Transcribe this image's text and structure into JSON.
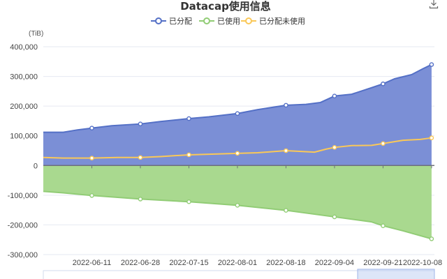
{
  "colors": {
    "allocated": "#5470c6",
    "allocated_fill": "#7b8fd6",
    "used": "#91cc75",
    "used_fill": "#a9d98f",
    "unused": "#fac858",
    "grid": "#e6e9f2",
    "axis": "#6e7079"
  },
  "icons": {
    "download": "download-icon"
  },
  "chart_data": {
    "type": "area",
    "title": "Datacap使用信息",
    "ylabel": "(TiB)",
    "ylim": [
      -300000,
      400000
    ],
    "yticks": [
      400000,
      300000,
      200000,
      100000,
      0,
      -100000,
      -200000,
      -300000
    ],
    "ytick_labels": [
      "400,000",
      "300,000",
      "200,000",
      "100,000",
      "0",
      "-100,000",
      "-200,000",
      "-300,000"
    ],
    "xtick_labels": [
      "2022-06-11",
      "2022-06-28",
      "2022-07-15",
      "2022-08-01",
      "2022-08-18",
      "2022-09-04",
      "2022-09-21",
      "2022-10-08"
    ],
    "legend_position": "top-center",
    "grid": true,
    "series": [
      {
        "name": "已分配",
        "color": "#5470c6",
        "x": [
          "2022-05-25",
          "2022-06-01",
          "2022-06-06",
          "2022-06-11",
          "2022-06-18",
          "2022-06-28",
          "2022-07-05",
          "2022-07-15",
          "2022-07-22",
          "2022-08-01",
          "2022-08-08",
          "2022-08-18",
          "2022-08-25",
          "2022-08-30",
          "2022-09-04",
          "2022-09-10",
          "2022-09-17",
          "2022-09-21",
          "2022-09-25",
          "2022-10-01",
          "2022-10-05",
          "2022-10-08"
        ],
        "values": [
          112000,
          112000,
          120000,
          126000,
          134000,
          140000,
          148000,
          158000,
          164000,
          175000,
          188000,
          203000,
          206000,
          212000,
          234000,
          240000,
          262000,
          275000,
          292000,
          306000,
          326000,
          340000
        ]
      },
      {
        "name": "已使用",
        "color": "#91cc75",
        "x": [
          "2022-05-25",
          "2022-06-01",
          "2022-06-11",
          "2022-06-28",
          "2022-07-15",
          "2022-08-01",
          "2022-08-18",
          "2022-09-04",
          "2022-09-17",
          "2022-09-21",
          "2022-09-28",
          "2022-10-08"
        ],
        "values": [
          -87000,
          -92000,
          -101000,
          -113000,
          -122000,
          -134000,
          -151000,
          -173000,
          -190000,
          -203000,
          -220000,
          -247000
        ]
      },
      {
        "name": "已分配未使用",
        "color": "#fac858",
        "x": [
          "2022-05-25",
          "2022-06-01",
          "2022-06-11",
          "2022-06-20",
          "2022-06-28",
          "2022-07-05",
          "2022-07-15",
          "2022-07-22",
          "2022-08-01",
          "2022-08-08",
          "2022-08-18",
          "2022-08-28",
          "2022-09-01",
          "2022-09-04",
          "2022-09-10",
          "2022-09-17",
          "2022-09-21",
          "2022-09-28",
          "2022-10-04",
          "2022-10-08"
        ],
        "values": [
          27000,
          25000,
          25000,
          27000,
          27000,
          30000,
          36000,
          38000,
          41000,
          43000,
          50000,
          45000,
          55000,
          61000,
          67000,
          68000,
          74000,
          85000,
          88000,
          93000
        ]
      }
    ]
  }
}
